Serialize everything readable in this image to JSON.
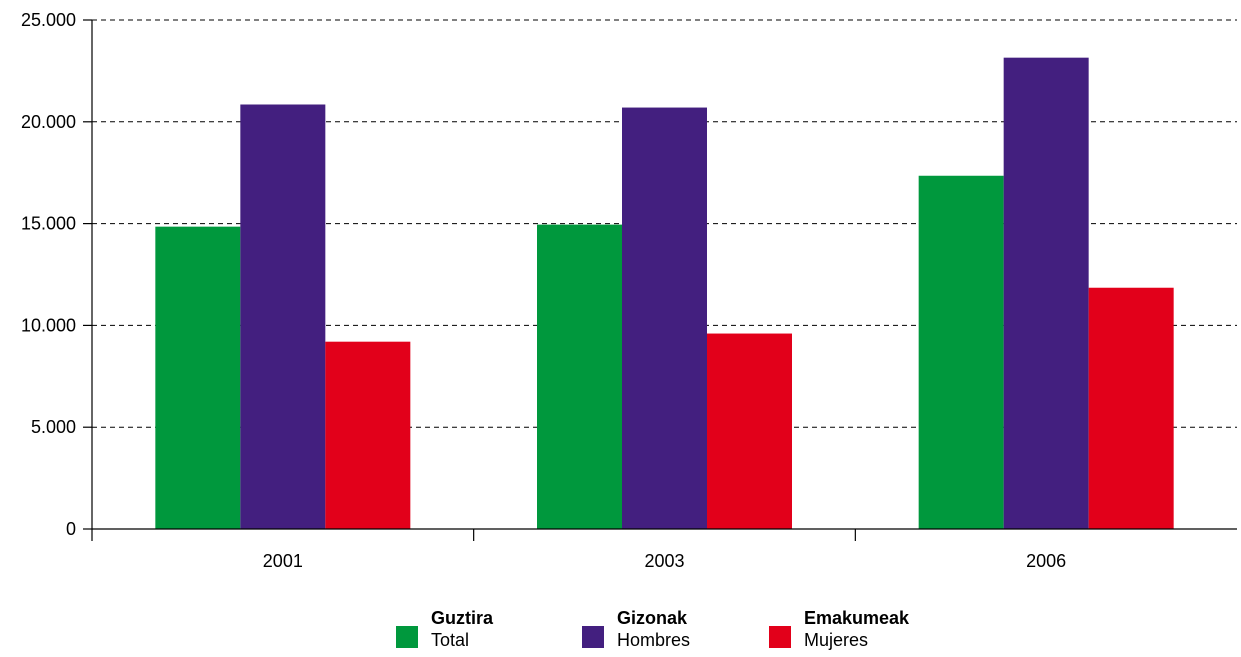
{
  "chart_data": {
    "type": "bar",
    "categories": [
      "2001",
      "2003",
      "2006"
    ],
    "series": [
      {
        "name": "Guztira",
        "subtitle": "Total",
        "color": "#00983d",
        "values": [
          14850,
          14950,
          17350
        ]
      },
      {
        "name": "Gizonak",
        "subtitle": "Hombres",
        "color": "#431f7f",
        "values": [
          20850,
          20700,
          23150
        ]
      },
      {
        "name": "Emakumeak",
        "subtitle": "Mujeres",
        "color": "#e2001a",
        "values": [
          9200,
          9600,
          11850
        ]
      }
    ],
    "yticks": [
      "0",
      "5.000",
      "10.000",
      "15.000",
      "20.000",
      "25.000"
    ],
    "ylim": [
      0,
      25000
    ],
    "ytick_step": 5000,
    "grid": "dashed horizontal",
    "legend_position": "bottom-center",
    "title": "",
    "xlabel": "",
    "ylabel": ""
  }
}
